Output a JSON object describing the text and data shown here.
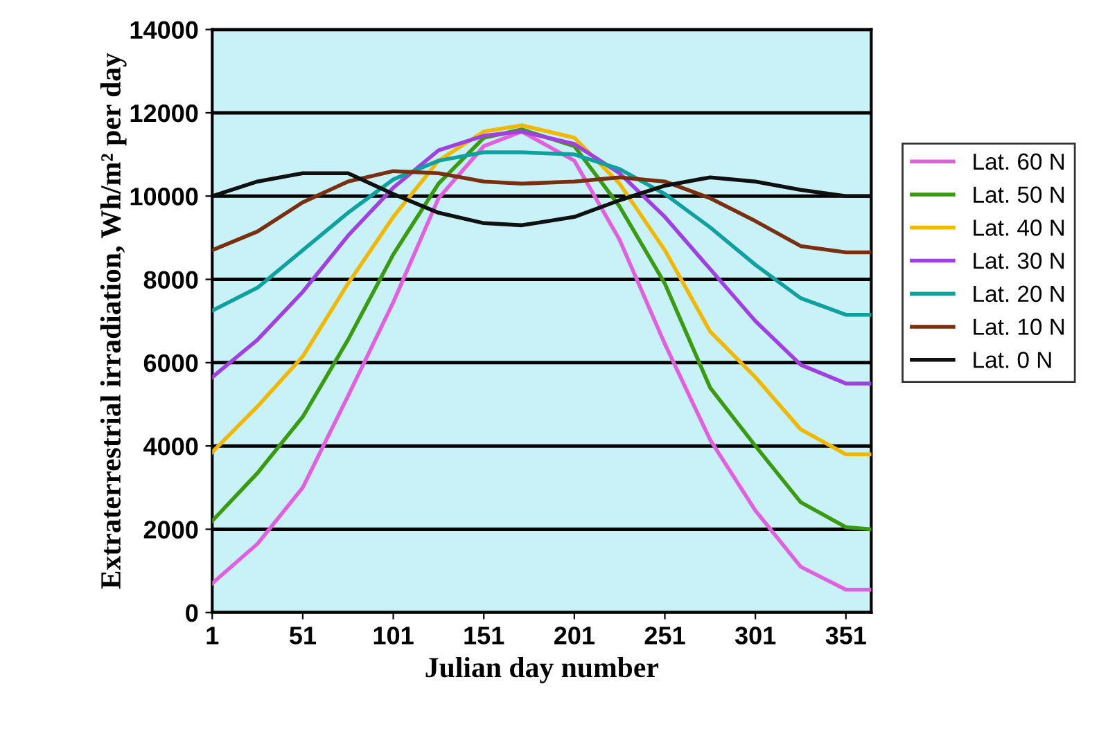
{
  "chart_data": {
    "type": "line",
    "xlabel": "Julian day number",
    "ylabel": "Extraterrestrial irradiation, Wh/m² per day",
    "x": [
      1,
      26,
      51,
      76,
      101,
      126,
      151,
      172,
      201,
      226,
      251,
      276,
      301,
      326,
      351,
      365
    ],
    "xlim": [
      1,
      365
    ],
    "xticks": [
      1,
      51,
      101,
      151,
      201,
      251,
      301,
      351
    ],
    "ylim": [
      0,
      14000
    ],
    "yticks": [
      0,
      2000,
      4000,
      6000,
      8000,
      10000,
      12000,
      14000
    ],
    "grid": "y",
    "legend": "right",
    "marker": "none",
    "line_style": "solid",
    "series": [
      {
        "name": "Lat. 60 N",
        "color": "#e060e0",
        "values": [
          700,
          1650,
          3000,
          5200,
          7450,
          9950,
          11200,
          11550,
          10850,
          8950,
          6450,
          4150,
          2450,
          1100,
          550,
          550
        ]
      },
      {
        "name": "Lat. 50 N",
        "color": "#3a9a10",
        "values": [
          2200,
          3350,
          4700,
          6550,
          8600,
          10300,
          11400,
          11600,
          11200,
          9750,
          7900,
          5400,
          4000,
          2650,
          2050,
          2000
        ]
      },
      {
        "name": "Lat. 40 N",
        "color": "#f0b800",
        "values": [
          3850,
          4950,
          6150,
          7900,
          9500,
          10850,
          11550,
          11700,
          11400,
          10300,
          8700,
          6750,
          5650,
          4400,
          3800,
          3800
        ]
      },
      {
        "name": "Lat. 30 N",
        "color": "#a040e0",
        "values": [
          5650,
          6550,
          7700,
          9050,
          10200,
          11100,
          11450,
          11550,
          11250,
          10550,
          9500,
          8250,
          7000,
          5950,
          5500,
          5500
        ]
      },
      {
        "name": "Lat. 20 N",
        "color": "#10a0a0",
        "values": [
          7250,
          7800,
          8700,
          9600,
          10400,
          10850,
          11050,
          11050,
          11000,
          10650,
          10050,
          9250,
          8350,
          7550,
          7150,
          7150
        ]
      },
      {
        "name": "Lat. 10 N",
        "color": "#7a3010",
        "values": [
          8700,
          9150,
          9850,
          10350,
          10600,
          10550,
          10350,
          10300,
          10350,
          10450,
          10350,
          9950,
          9400,
          8800,
          8650,
          8650
        ]
      },
      {
        "name": "Lat. 0 N",
        "color": "#101010",
        "values": [
          10000,
          10350,
          10550,
          10550,
          10050,
          9600,
          9350,
          9300,
          9500,
          9900,
          10250,
          10450,
          10350,
          10150,
          10000,
          10000
        ]
      }
    ]
  }
}
